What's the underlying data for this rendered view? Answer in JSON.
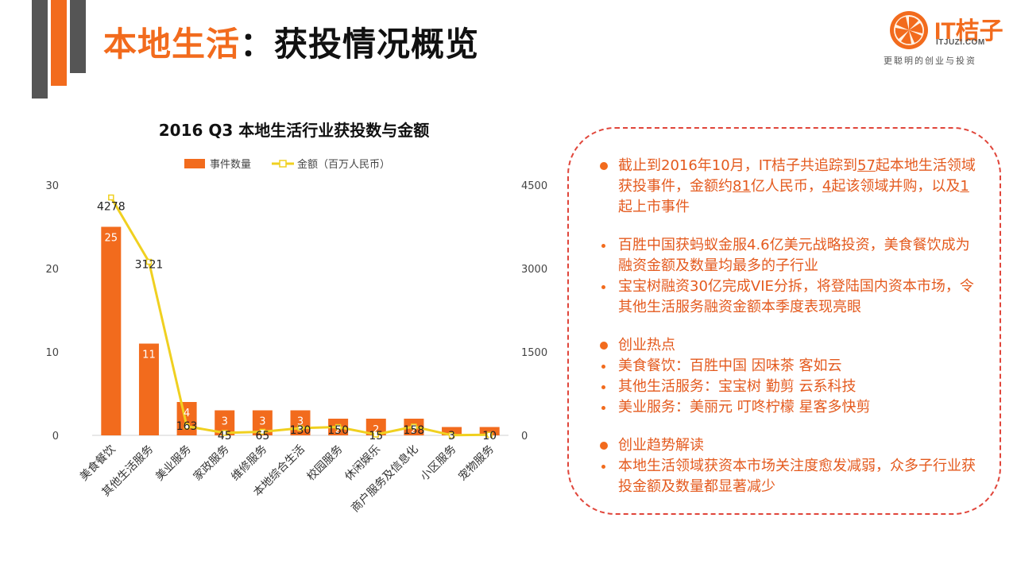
{
  "slide": {
    "title_part1": "本地生活",
    "title_part2": "：获投情况概览",
    "logo": {
      "name": "IT桔子",
      "domain": "ITJUZI.COM",
      "slogan": "更聪明的创业与投资"
    }
  },
  "colors": {
    "accent": "#f26b1d",
    "line": "#f0d020",
    "dark": "#555555",
    "text": "#e45a1e",
    "border": "#e0453a"
  },
  "chart_data": {
    "type": "bar",
    "title": "2016 Q3 本地生活行业获投数与金额",
    "legend": {
      "position": "top",
      "bar_label": "事件数量",
      "line_label": "金额（百万人民币）"
    },
    "categories": [
      "美食餐饮",
      "其他生活服务",
      "美业服务",
      "家政服务",
      "维修服务",
      "本地综合生活",
      "校园服务",
      "休闲娱乐",
      "商户服务及信息化",
      "小区服务",
      "宠物服务"
    ],
    "series": [
      {
        "name": "事件数量",
        "type": "bar",
        "axis": "left",
        "values": [
          25,
          11,
          4,
          3,
          3,
          3,
          2,
          2,
          2,
          1,
          1
        ]
      },
      {
        "name": "金额（百万人民币）",
        "type": "line",
        "axis": "right",
        "values": [
          4278,
          3121,
          163,
          45,
          65,
          130,
          150,
          15,
          158,
          3,
          10
        ]
      }
    ],
    "y_left": {
      "min": 0,
      "max": 30,
      "ticks": [
        "0",
        "10",
        "20",
        "30"
      ]
    },
    "y_right": {
      "min": 0,
      "max": 4500,
      "ticks": [
        "0",
        "1500",
        "3000",
        "4500"
      ]
    },
    "grid": false
  },
  "panel": {
    "b1": {
      "pre": "截止到2016年10月，IT桔子共追踪到",
      "n1": "57",
      "mid1": "起本地生活领域获投事件，金额约",
      "n2": "81",
      "mid2": "亿人民币，",
      "n3": "4",
      "mid3": "起该领域并购，以及",
      "n4": "1",
      "post": "起上市事件"
    },
    "b2": "百胜中国获蚂蚁金服4.6亿美元战略投资，美食餐饮成为融资金额及数量均最多的子行业",
    "b3": "宝宝树融资30亿完成VIE分拆，将登陆国内资本市场，令其他生活服务融资金额本季度表现亮眼",
    "h1": "创业热点",
    "hot": [
      "美食餐饮：百胜中国 因味茶 客如云",
      "其他生活服务：宝宝树 勤剪 云系科技",
      "美业服务：美丽元 叮咚柠檬 星客多快剪"
    ],
    "h2": "创业趋势解读",
    "trend": "本地生活领域获资本市场关注度愈发减弱，众多子行业获投金额及数量都显著减少"
  }
}
